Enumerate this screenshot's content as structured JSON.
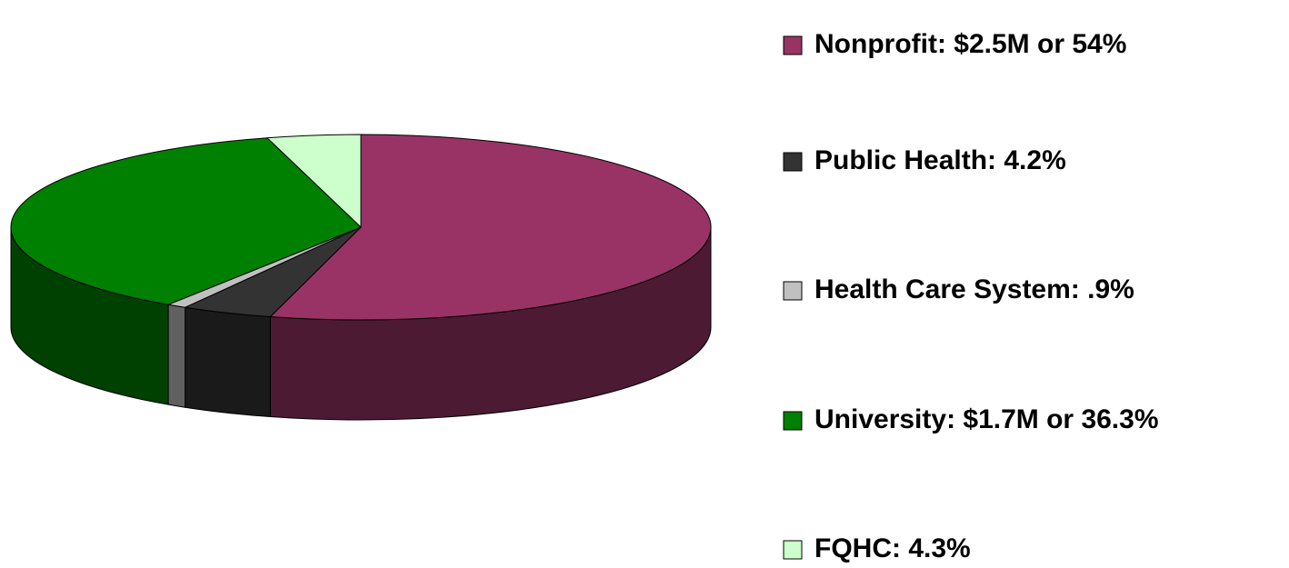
{
  "chart_data": {
    "type": "pie",
    "categories": [
      "Nonprofit: $2.5M or 54%",
      "Public Health:  4.2%",
      "Health Care System: .9%",
      "University: $1.7M or 36.3%",
      "FQHC: 4.3%"
    ],
    "values": [
      54,
      4.2,
      0.9,
      36.3,
      4.3
    ],
    "colors": [
      "#993366",
      "#333333",
      "#c0c0c0",
      "#008000",
      "#ccffcc"
    ],
    "legend": "right"
  }
}
